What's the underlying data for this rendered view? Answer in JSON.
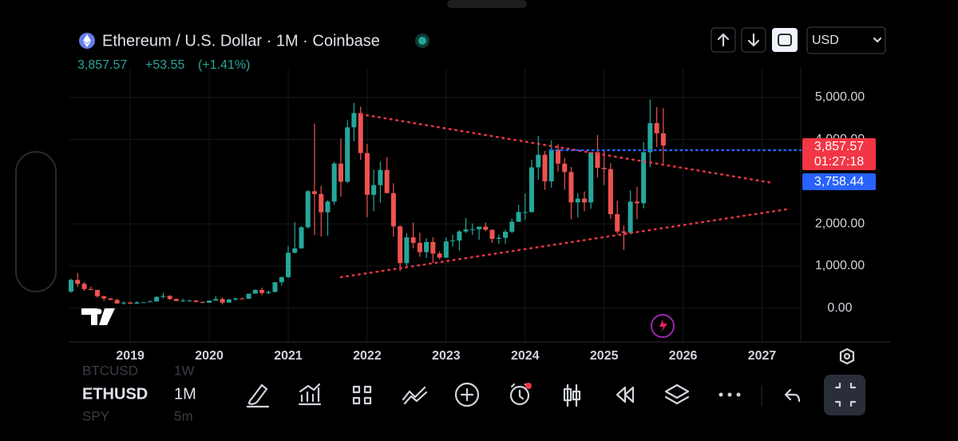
{
  "header": {
    "title": "Ethereum / U.S. Dollar · 1M · Coinbase",
    "price": "3,857.57",
    "change": "+53.55",
    "change_pct": "(+1.41%)",
    "currency": "USD"
  },
  "price_labels": {
    "last": "3,857.57",
    "countdown": "01:27:18",
    "line": "3,758.44"
  },
  "toolbar": {
    "symbols": [
      {
        "symbol": "BTCUSD",
        "interval": "1W"
      },
      {
        "symbol": "ETHUSD",
        "interval": "1M"
      },
      {
        "symbol": "SPY",
        "interval": "5m"
      }
    ]
  },
  "chart_data": {
    "type": "candlestick",
    "up_color": "#26a69a",
    "down_color": "#ef5350",
    "grid": true,
    "xlim": [
      2018.23,
      2027.49
    ],
    "xticks": [
      2019,
      2020,
      2021,
      2022,
      2023,
      2024,
      2025,
      2026,
      2027
    ],
    "ylim": [
      -800,
      5700
    ],
    "yticks": [
      {
        "value": 0,
        "label": "0.00"
      },
      {
        "value": 1000,
        "label": "1,000.00"
      },
      {
        "value": 2000,
        "label": "2,000.00"
      },
      {
        "value": 4000,
        "label": "4,000.00"
      },
      {
        "value": 5000,
        "label": "5,000.00"
      }
    ],
    "x": [
      2018.25,
      2018.333,
      2018.417,
      2018.5,
      2018.583,
      2018.667,
      2018.75,
      2018.833,
      2018.917,
      2019,
      2019.083,
      2019.167,
      2019.25,
      2019.333,
      2019.417,
      2019.5,
      2019.583,
      2019.667,
      2019.75,
      2019.833,
      2019.917,
      2020,
      2020.083,
      2020.167,
      2020.25,
      2020.333,
      2020.417,
      2020.5,
      2020.583,
      2020.667,
      2020.75,
      2020.833,
      2020.917,
      2021,
      2021.083,
      2021.167,
      2021.25,
      2021.333,
      2021.417,
      2021.5,
      2021.583,
      2021.667,
      2021.75,
      2021.833,
      2021.917,
      2022,
      2022.083,
      2022.167,
      2022.25,
      2022.333,
      2022.417,
      2022.5,
      2022.583,
      2022.667,
      2022.75,
      2022.833,
      2022.917,
      2023,
      2023.083,
      2023.167,
      2023.25,
      2023.333,
      2023.417,
      2023.5,
      2023.583,
      2023.667,
      2023.75,
      2023.833,
      2023.917,
      2024,
      2024.083,
      2024.167,
      2024.25,
      2024.333,
      2024.417,
      2024.5,
      2024.583,
      2024.667,
      2024.75,
      2024.833,
      2024.917,
      2025,
      2025.083,
      2025.167,
      2025.25,
      2025.333,
      2025.417,
      2025.5,
      2025.583,
      2025.667,
      2025.75
    ],
    "open": [
      395,
      670,
      578,
      455,
      433,
      283,
      232,
      197,
      113,
      133,
      107,
      136,
      141,
      160,
      268,
      290,
      218,
      172,
      180,
      182,
      151,
      129,
      180,
      218,
      133,
      206,
      231,
      225,
      345,
      434,
      360,
      386,
      615,
      737,
      1315,
      1420,
      1920,
      2775,
      2710,
      2275,
      2530,
      3430,
      3000,
      4290,
      4630,
      3680,
      2690,
      2920,
      3280,
      2730,
      1940,
      1070,
      1680,
      1550,
      1330,
      1570,
      1295,
      1200,
      1585,
      1605,
      1820,
      1870,
      1870,
      1935,
      1860,
      1645,
      1670,
      1815,
      2050,
      2280,
      2280,
      3340,
      3640,
      3010,
      3760,
      3430,
      3230,
      2510,
      2600,
      2510,
      3700,
      3330,
      3300,
      2230,
      1820,
      1790,
      2530,
      2490,
      3700,
      4390,
      4150
    ],
    "high": [
      700,
      835,
      620,
      515,
      440,
      300,
      235,
      220,
      160,
      160,
      165,
      145,
      185,
      285,
      365,
      310,
      230,
      223,
      198,
      193,
      153,
      185,
      287,
      253,
      227,
      247,
      252,
      348,
      445,
      488,
      420,
      620,
      750,
      1475,
      2040,
      1945,
      2800,
      4380,
      2900,
      2560,
      3470,
      4030,
      4460,
      4870,
      4780,
      3900,
      3290,
      3480,
      3580,
      2965,
      1970,
      1780,
      2030,
      1790,
      1660,
      1680,
      1350,
      1680,
      1740,
      1855,
      2140,
      2010,
      1930,
      2030,
      1870,
      1750,
      1865,
      2130,
      2450,
      2720,
      3520,
      4090,
      3730,
      3980,
      3890,
      3560,
      3350,
      2730,
      2770,
      3680,
      4110,
      3740,
      3440,
      2550,
      1960,
      2790,
      2880,
      3940,
      4950,
      4770,
      4750
    ],
    "low": [
      365,
      510,
      410,
      430,
      250,
      170,
      190,
      100,
      82,
      102,
      102,
      130,
      140,
      158,
      230,
      195,
      162,
      151,
      156,
      138,
      117,
      126,
      178,
      90,
      130,
      176,
      216,
      223,
      345,
      310,
      335,
      375,
      535,
      715,
      1300,
      1410,
      1890,
      1735,
      1700,
      1720,
      2450,
      2650,
      2970,
      3960,
      3520,
      2160,
      2300,
      2500,
      2790,
      1700,
      880,
      1000,
      1420,
      1220,
      1190,
      1070,
      1160,
      1190,
      1460,
      1370,
      1780,
      1740,
      1620,
      1825,
      1550,
      1530,
      1525,
      1780,
      2050,
      2100,
      2270,
      3050,
      2810,
      2860,
      3240,
      2810,
      2110,
      2150,
      2300,
      2360,
      3100,
      2920,
      2120,
      1760,
      1380,
      1750,
      2110,
      2370,
      3350,
      3820,
      3440
    ],
    "close": [
      670,
      578,
      455,
      433,
      283,
      232,
      197,
      113,
      133,
      107,
      136,
      141,
      160,
      268,
      290,
      218,
      172,
      180,
      182,
      151,
      129,
      180,
      218,
      133,
      206,
      231,
      225,
      345,
      434,
      360,
      386,
      615,
      737,
      1315,
      1420,
      1920,
      2775,
      2710,
      2275,
      2530,
      3430,
      3000,
      4290,
      4630,
      3680,
      2690,
      2920,
      3280,
      2730,
      1940,
      1070,
      1680,
      1550,
      1330,
      1570,
      1295,
      1200,
      1585,
      1605,
      1820,
      1870,
      1870,
      1935,
      1860,
      1645,
      1670,
      1815,
      2050,
      2280,
      2280,
      3340,
      3640,
      3010,
      3760,
      3430,
      3230,
      2510,
      2600,
      2510,
      3700,
      3330,
      3300,
      2230,
      1820,
      1790,
      2530,
      2490,
      3700,
      4390,
      4150,
      3857.57
    ]
  }
}
